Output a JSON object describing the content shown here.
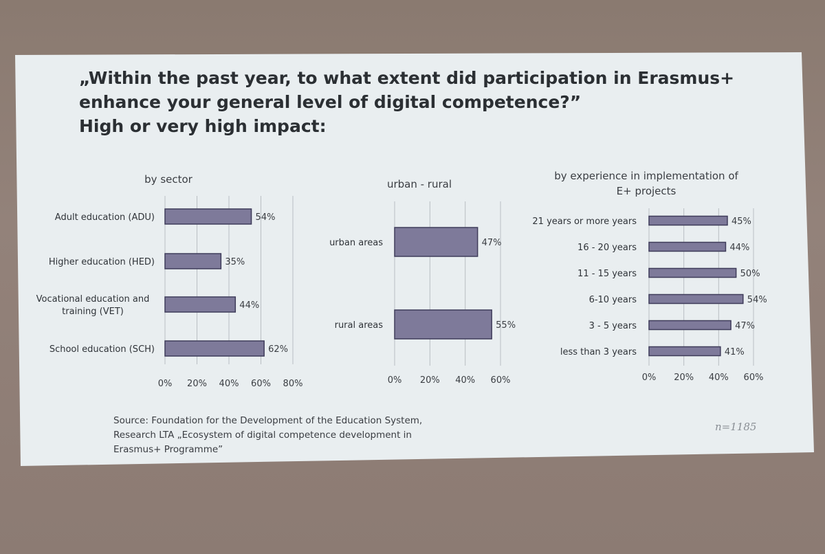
{
  "slide": {
    "title_lines": [
      "„Within the past year, to what extent did participation in Erasmus+",
      "enhance your general level of digital competence?”",
      "High or very high impact:"
    ],
    "source_lines": [
      "Source: Foundation for the Development of the Education System,",
      "Research LTA „Ecosystem of digital competence development in",
      "Erasmus+ Programme”"
    ],
    "n_label": "n=1185"
  },
  "chart_data": [
    {
      "type": "bar",
      "orientation": "horizontal",
      "title": "by sector",
      "categories": [
        "Adult education (ADU)",
        "Higher education (HED)",
        "Vocational education and training (VET)",
        "School education (SCH)"
      ],
      "category_lines": [
        [
          "Adult education (ADU)"
        ],
        [
          "Higher education (HED)"
        ],
        [
          "Vocational education and",
          "training (VET)"
        ],
        [
          "School education (SCH)"
        ]
      ],
      "values": [
        54,
        35,
        44,
        62
      ],
      "value_labels": [
        "54%",
        "35%",
        "44%",
        "62%"
      ],
      "xlim": [
        0,
        80
      ],
      "ticks": [
        0,
        20,
        40,
        60,
        80
      ],
      "tick_labels": [
        "0%",
        "20%",
        "40%",
        "60%",
        "80%"
      ],
      "grid": true
    },
    {
      "type": "bar",
      "orientation": "horizontal",
      "title": "urban - rural",
      "categories": [
        "urban areas",
        "rural areas"
      ],
      "category_lines": [
        [
          "urban areas"
        ],
        [
          "rural areas"
        ]
      ],
      "values": [
        47,
        55
      ],
      "value_labels": [
        "47%",
        "55%"
      ],
      "xlim": [
        0,
        60
      ],
      "ticks": [
        0,
        20,
        40,
        60
      ],
      "tick_labels": [
        "0%",
        "20%",
        "40%",
        "60%"
      ],
      "grid": true
    },
    {
      "type": "bar",
      "orientation": "horizontal",
      "title": "by experience in implementation of E+ projects",
      "title_lines": [
        "by experience in implementation of",
        "E+ projects"
      ],
      "categories": [
        "21 years or more years",
        "16 - 20 years",
        "11 - 15 years",
        "6-10 years",
        "3 - 5 years",
        "less than 3 years"
      ],
      "category_lines": [
        [
          "21 years or more years"
        ],
        [
          "16 - 20 years"
        ],
        [
          "11 - 15 years"
        ],
        [
          "6-10 years"
        ],
        [
          "3 - 5 years"
        ],
        [
          "less than 3 years"
        ]
      ],
      "values": [
        45,
        44,
        50,
        54,
        47,
        41
      ],
      "value_labels": [
        "45%",
        "44%",
        "50%",
        "54%",
        "47%",
        "41%"
      ],
      "xlim": [
        0,
        60
      ],
      "ticks": [
        0,
        20,
        40,
        60
      ],
      "tick_labels": [
        "0%",
        "20%",
        "40%",
        "60%"
      ],
      "grid": true
    }
  ]
}
